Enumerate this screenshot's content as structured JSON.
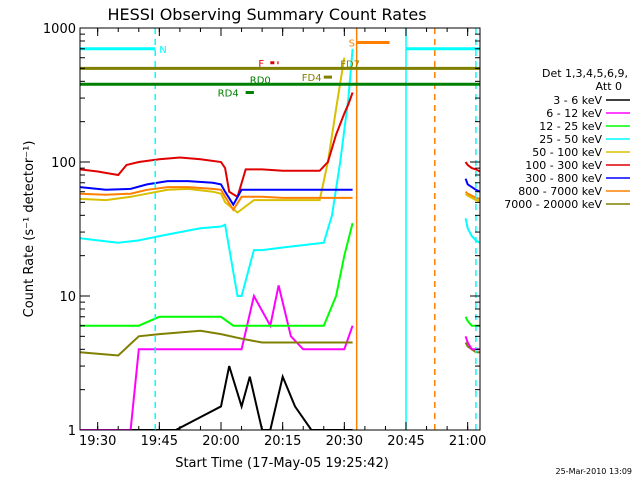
{
  "chart_data": {
    "type": "line",
    "title": "HESSI Observing Summary Count Rates",
    "xlabel": "Start Time (17-May-05 19:25:42)",
    "ylabel": "Count Rate (s⁻¹ detector⁻¹)",
    "y_scale": "log",
    "ylim": [
      1,
      1000
    ],
    "xlim": [
      "19:25:42",
      "21:03:00"
    ],
    "x_ticks": [
      "19:30",
      "19:45",
      "20:00",
      "20:15",
      "20:30",
      "20:45",
      "21:00"
    ],
    "y_ticks": [
      "1",
      "10",
      "100",
      "1000"
    ],
    "legend_header": [
      "Det 1,3,4,5,6,9,",
      "Att 0"
    ],
    "legend_position": "right",
    "footer_date": "25-Mar-2010 13:09",
    "series": [
      {
        "name": "3 - 6 keV",
        "color": "#000000",
        "x": [
          "19:25:42",
          "19:49",
          "20:00",
          "20:02",
          "20:05",
          "20:07",
          "20:10",
          "20:12",
          "20:15",
          "20:18",
          "20:22",
          "20:26",
          "20:30",
          "20:32"
        ],
        "y": [
          1,
          1,
          1.5,
          3,
          1.5,
          2.5,
          1,
          1,
          2.5,
          1.5,
          1,
          1,
          1,
          1
        ]
      },
      {
        "name": "6 - 12 keV",
        "color": "#ff00ff",
        "x": [
          "19:25:42",
          "19:38",
          "19:40",
          "19:45",
          "19:55",
          "20:05",
          "20:08",
          "20:12",
          "20:14",
          "20:17",
          "20:20",
          "20:25",
          "20:30",
          "20:32"
        ],
        "y": [
          1,
          1,
          4,
          4,
          4,
          4,
          10,
          6,
          12,
          5,
          4,
          4,
          4,
          6
        ]
      },
      {
        "name": "12 - 25 keV",
        "color": "#00ff00",
        "x": [
          "19:25:42",
          "19:40",
          "19:45",
          "19:55",
          "20:00",
          "20:03",
          "20:06",
          "20:10",
          "20:15",
          "20:20",
          "20:25",
          "20:28",
          "20:30",
          "20:32"
        ],
        "y": [
          6,
          6,
          7,
          7,
          7,
          6,
          6,
          6,
          6,
          6,
          6,
          10,
          20,
          35
        ]
      },
      {
        "name": "25 - 50 keV",
        "color": "#00ffff",
        "x": [
          "19:25:42",
          "19:30",
          "19:35",
          "19:40",
          "19:45",
          "19:50",
          "19:55",
          "20:00",
          "20:01",
          "20:04",
          "20:05",
          "20:08",
          "20:10",
          "20:15",
          "20:20",
          "20:25",
          "20:27",
          "20:29",
          "20:31",
          "20:32"
        ],
        "y": [
          27,
          26,
          25,
          26,
          28,
          30,
          32,
          33,
          34,
          10,
          10,
          22,
          22,
          23,
          24,
          25,
          40,
          100,
          300,
          700
        ]
      },
      {
        "name": "50 - 100 keV",
        "color": "#d8c000",
        "x": [
          "19:25:42",
          "19:32",
          "19:38",
          "19:42",
          "19:47",
          "19:52",
          "19:58",
          "20:00",
          "20:01",
          "20:04",
          "20:08",
          "20:14",
          "20:20",
          "20:24",
          "20:26",
          "20:28",
          "20:30"
        ],
        "y": [
          53,
          52,
          55,
          58,
          62,
          63,
          60,
          58,
          50,
          42,
          52,
          52,
          52,
          52,
          100,
          250,
          600
        ]
      },
      {
        "name": "100 - 300 keV",
        "color": "#e00000",
        "x": [
          "19:25:42",
          "19:30",
          "19:35",
          "19:37",
          "19:40",
          "19:45",
          "19:50",
          "19:55",
          "20:00",
          "20:01",
          "20:02",
          "20:04",
          "20:06",
          "20:10",
          "20:15",
          "20:20",
          "20:24",
          "20:26",
          "20:28",
          "20:30",
          "20:31",
          "20:32"
        ],
        "y": [
          88,
          85,
          80,
          95,
          100,
          105,
          108,
          105,
          100,
          90,
          60,
          55,
          88,
          88,
          86,
          86,
          86,
          100,
          160,
          230,
          270,
          330
        ]
      },
      {
        "name": "300 - 800 keV",
        "color": "#0000ff",
        "x": [
          "19:25:42",
          "19:32",
          "19:38",
          "19:42",
          "19:47",
          "19:52",
          "19:58",
          "20:00",
          "20:01",
          "20:03",
          "20:05",
          "20:08",
          "20:12",
          "20:16",
          "20:20",
          "20:25",
          "20:30",
          "20:32"
        ],
        "y": [
          65,
          62,
          63,
          68,
          72,
          72,
          70,
          68,
          60,
          48,
          62,
          62,
          62,
          62,
          62,
          62,
          62,
          62
        ]
      },
      {
        "name": "800 - 7000 keV",
        "color": "#ff8000",
        "x": [
          "19:25:42",
          "19:32",
          "19:38",
          "19:42",
          "19:47",
          "19:52",
          "19:58",
          "20:00",
          "20:01",
          "20:03",
          "20:05",
          "20:10",
          "20:15",
          "20:20",
          "20:25",
          "20:30",
          "20:32"
        ],
        "y": [
          58,
          57,
          58,
          62,
          65,
          65,
          63,
          62,
          55,
          44,
          55,
          55,
          54,
          54,
          54,
          54,
          54
        ]
      },
      {
        "name": "7000 - 20000 keV",
        "color": "#808000",
        "x": [
          "19:25:42",
          "19:35",
          "19:40",
          "19:45",
          "19:55",
          "20:00",
          "20:05",
          "20:10",
          "20:15",
          "20:20",
          "20:25",
          "20:30",
          "20:32"
        ],
        "y": [
          3.8,
          3.6,
          5,
          5.2,
          5.5,
          5.2,
          4.8,
          4.5,
          4.5,
          4.5,
          4.5,
          4.5,
          4.5
        ]
      }
    ],
    "series_post": {
      "x": [
        "20:59:30",
        "21:00",
        "21:01",
        "21:02",
        "21:03:00"
      ],
      "red": [
        100,
        95,
        90,
        88,
        85
      ],
      "blue": [
        75,
        68,
        65,
        62,
        60
      ],
      "orange": [
        60,
        58,
        56,
        54,
        53
      ],
      "yellow": [
        58,
        56,
        54,
        52,
        51
      ],
      "cyan": [
        38,
        32,
        28,
        26,
        25
      ],
      "green": [
        7,
        6.5,
        6,
        6,
        6
      ],
      "olive": [
        4.5,
        4.2,
        4,
        3.8,
        3.8
      ],
      "magenta": [
        5,
        4.5,
        4,
        4,
        4
      ]
    },
    "annotations": {
      "flags": [
        {
          "label": "N",
          "color": "#00ffff",
          "y": 700,
          "start": "19:25:42",
          "end": "19:44"
        },
        {
          "label": "N",
          "color": "#00ffff",
          "y": 700,
          "start": "20:45",
          "end": "21:03:00"
        },
        {
          "label": "F",
          "color": "#e00000",
          "y": 550,
          "start": "20:12",
          "end": "20:14"
        },
        {
          "label": "S",
          "color": "#ff8000",
          "y": 780,
          "start": "20:33",
          "end": "20:41"
        },
        {
          "label": "FD7",
          "color": "#808000",
          "y": 500,
          "start": "19:25:42",
          "end": "21:03:00"
        },
        {
          "label": "FD4",
          "color": "#808000",
          "y": 430,
          "start": "20:25",
          "end": "20:27"
        },
        {
          "label": "RD0",
          "color": "#008000",
          "y": 380,
          "start": "19:25:42",
          "end": "21:03:00"
        },
        {
          "label": "RD4",
          "color": "#008000",
          "y": 330,
          "start": "20:06",
          "end": "20:08"
        }
      ],
      "vlines": [
        {
          "t": "19:44",
          "color": "#00ffff",
          "style": "dashed"
        },
        {
          "t": "20:33",
          "color": "#ff8000",
          "style": "solid"
        },
        {
          "t": "20:45",
          "color": "#00ffff",
          "style": "solid"
        },
        {
          "t": "20:52",
          "color": "#ff8000",
          "style": "dashed"
        },
        {
          "t": "21:02",
          "color": "#00ffff",
          "style": "dashed"
        }
      ]
    }
  }
}
